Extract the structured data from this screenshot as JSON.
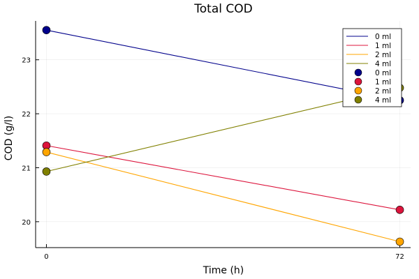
{
  "chart_data": {
    "type": "line",
    "title": "Total COD",
    "xlabel": "Time (h)",
    "ylabel": "COD (g/l)",
    "x": [
      0,
      72
    ],
    "xticks": [
      0,
      72
    ],
    "xtick_labels": [
      "0",
      "72"
    ],
    "yticks": [
      20,
      21,
      22,
      23
    ],
    "ytick_labels": [
      "20",
      "21",
      "22",
      "23"
    ],
    "xlim": [
      -2.2,
      74.2
    ],
    "ylim": [
      19.52,
      23.72
    ],
    "grid": true,
    "legend_position": "top-right",
    "series": [
      {
        "name": "0 ml",
        "color": "#00008b",
        "values": [
          23.55,
          22.25
        ]
      },
      {
        "name": "1 ml",
        "color": "#dc143c",
        "values": [
          21.41,
          20.22
        ]
      },
      {
        "name": "2 ml",
        "color": "#ffa500",
        "values": [
          21.29,
          19.63
        ]
      },
      {
        "name": "4 ml",
        "color": "#808000",
        "values": [
          20.93,
          22.48
        ]
      }
    ]
  }
}
